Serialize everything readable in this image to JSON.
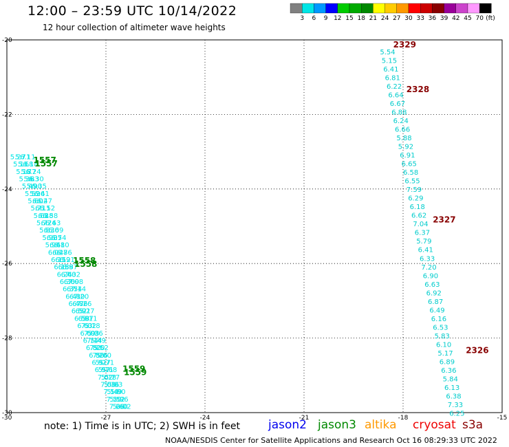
{
  "header": {
    "title": "12:00 – 23:59 UTC 10/14/2022",
    "subtitle": "12 hour collection of altimeter wave heights"
  },
  "color_scale": {
    "labels": [
      "3",
      "6",
      "9",
      "12",
      "15",
      "18",
      "21",
      "24",
      "27",
      "30",
      "33",
      "36",
      "39",
      "42",
      "45",
      "70"
    ],
    "unit": "(ft)",
    "colors": [
      "#808080",
      "#00e5e5",
      "#0099ff",
      "#0000ff",
      "#00cc00",
      "#00aa00",
      "#008800",
      "#ffff00",
      "#ffcc00",
      "#ff9900",
      "#ff0000",
      "#cc0000",
      "#880000",
      "#990099",
      "#cc44cc",
      "#ff99ff",
      "#000000"
    ]
  },
  "footer": {
    "note": "note: 1) Time is in UTC; 2) SWH is in feet",
    "credit": "NOAA/NESDIS Center for Satellite Applications and Research   Oct 16 08:29:33 UTC 2022"
  },
  "legend": [
    {
      "name": "jason2",
      "color": "#0000ee"
    },
    {
      "name": "jason3",
      "color": "#008800"
    },
    {
      "name": "altika",
      "color": "#ff9900"
    },
    {
      "name": "cryosat",
      "color": "#ee0000"
    },
    {
      "name": "s3a",
      "color": "#880000"
    }
  ],
  "chart_data": {
    "type": "scatter",
    "xlim": [
      -30,
      -15
    ],
    "ylim": [
      -30,
      -20
    ],
    "xticks": [
      "-30",
      "-27",
      "-24",
      "-21",
      "-18",
      "-15"
    ],
    "yticks": [
      "-20",
      "-22",
      "-24",
      "-26",
      "-28",
      "-30"
    ],
    "grid": true,
    "tracks": [
      {
        "satellite": "s3a",
        "value_color": "#00cccc",
        "label_color": "#880000",
        "time_labels": [
          {
            "text": "2329",
            "lon": -18.3,
            "lat": -20.2
          },
          {
            "text": "2328",
            "lon": -17.9,
            "lat": -21.4
          },
          {
            "text": "2327",
            "lon": -17.1,
            "lat": -24.9
          },
          {
            "text": "2326",
            "lon": -16.1,
            "lat": -28.4
          }
        ],
        "start": [
          -18.7,
          -20.2
        ],
        "end": [
          -16.6,
          -29.9
        ],
        "values": [
          "5.54",
          "5.15",
          "6.41",
          "6.81",
          "6.22",
          "6.64",
          "6.67",
          "6.88",
          "6.24",
          "6.66",
          "5.88",
          "5.92",
          "6.91",
          "6.65",
          "6.58",
          "6.55",
          "7.59",
          "6.29",
          "6.18",
          "6.62",
          "7.04",
          "6.37",
          "5.79",
          "6.41",
          "6.33",
          "7.20",
          "6.90",
          "6.63",
          "6.92",
          "6.87",
          "6.49",
          "6.16",
          "6.53",
          "5.83",
          "6.10",
          "5.17",
          "6.89",
          "6.36",
          "5.84",
          "6.13",
          "6.38",
          "7.33",
          "6.25"
        ]
      },
      {
        "satellite": "jason3",
        "value_color": "#00e5e5",
        "label_color": "#008800",
        "time_labels": [
          {
            "text": "1557",
            "lon": -29.2,
            "lat": -23.3
          },
          {
            "text": "1558",
            "lon": -28.0,
            "lat": -26.0
          },
          {
            "text": "1559",
            "lon": -26.5,
            "lat": -28.9
          }
        ],
        "lines": [
          {
            "start": [
              -29.9,
              -23.2
            ],
            "end": [
              -26.9,
              -29.9
            ]
          },
          {
            "start": [
              -29.75,
              -23.2
            ],
            "end": [
              -26.8,
              -29.9
            ]
          },
          {
            "start": [
              -29.6,
              -23.2
            ],
            "end": [
              -26.7,
              -29.9
            ]
          }
        ],
        "values": [
          "5.27",
          "5.11",
          "5.18",
          "5.36",
          "5.49",
          "5.52",
          "5.60",
          "5.71",
          "5.68",
          "5.77",
          "5.83",
          "5.90",
          "5.96",
          "6.02",
          "6.11",
          "6.18",
          "6.24",
          "6.30",
          "6.35",
          "6.41",
          "6.47",
          "6.52",
          "6.58",
          "6.63",
          "6.69",
          "6.74",
          "6.80",
          "6.86",
          "6.91",
          "6.97",
          "7.02",
          "7.08",
          "7.14",
          "7.20",
          "7.26"
        ]
      }
    ]
  }
}
